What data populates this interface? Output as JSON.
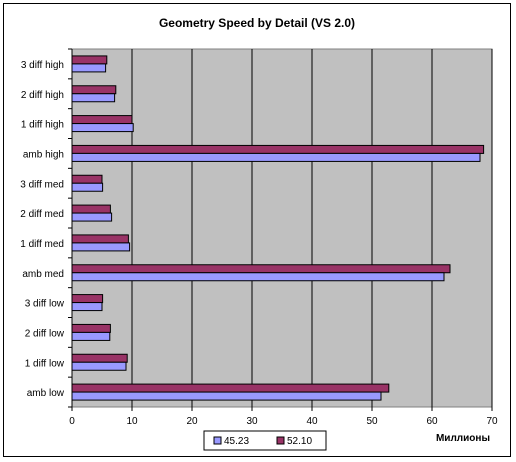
{
  "chart_data": {
    "type": "bar",
    "orientation": "horizontal",
    "title": "Geometry Speed by Detail (VS 2.0)",
    "xlabel": "Миллионы",
    "ylabel": "",
    "xlim": [
      0,
      70
    ],
    "xticks": [
      0,
      10,
      20,
      30,
      40,
      50,
      60,
      70
    ],
    "grid": true,
    "legend_position": "bottom",
    "categories": [
      "amb low",
      "1 diff low",
      "2 diff low",
      "3 diff low",
      "amb med",
      "1 diff med",
      "2 diff med",
      "3 diff med",
      "amb high",
      "1 diff high",
      "2 diff high",
      "3 diff high"
    ],
    "series": [
      {
        "name": "45.23",
        "color": "#9999ff",
        "values": [
          51.5,
          9.0,
          6.3,
          5.0,
          62.0,
          9.6,
          6.6,
          5.1,
          68.0,
          10.2,
          7.1,
          5.6
        ]
      },
      {
        "name": "52.10",
        "color": "#993366",
        "values": [
          52.8,
          9.2,
          6.4,
          5.1,
          63.0,
          9.4,
          6.4,
          5.0,
          68.6,
          10.0,
          7.3,
          5.8
        ]
      }
    ],
    "plot_background": "#c0c0c0"
  }
}
